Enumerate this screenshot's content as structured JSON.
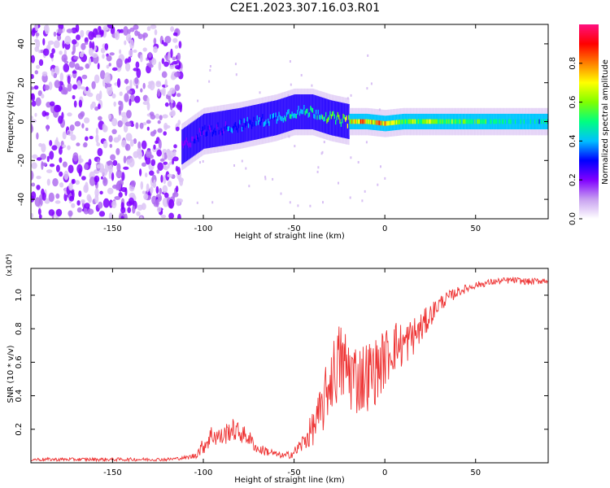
{
  "title": "C2E1.2023.307.16.03.R01",
  "colors": {
    "signal_line": "#ee3333",
    "spectrogram_scatter": "#8a2be2",
    "colorbar_stops": [
      "#ffffff",
      "#c8a0f0",
      "#8000ff",
      "#0000ff",
      "#00c0ff",
      "#00ff80",
      "#80ff00",
      "#ffff00",
      "#ff8000",
      "#ff0000",
      "#ff1080"
    ]
  },
  "chart_data": [
    {
      "type": "heatmap",
      "xlabel": "Height of straight line (km)",
      "ylabel": "Frequency (Hz)",
      "xlim": [
        -195,
        90
      ],
      "ylim": [
        -50,
        50
      ],
      "xticks": [
        -150,
        -100,
        -50,
        0,
        50
      ],
      "yticks": [
        -40,
        -20,
        0,
        20,
        40
      ],
      "colorbar": {
        "label": "Normalized spectral amplitude",
        "range": [
          0,
          1
        ],
        "ticks": [
          "0.0",
          "0.2",
          "0.4",
          "0.6",
          "0.8"
        ]
      },
      "noise_region_x": [
        -195,
        -112
      ],
      "ridge": {
        "x": [
          -112,
          -100,
          -80,
          -60,
          -50,
          -40,
          -30,
          -20,
          -10,
          0,
          10,
          20,
          40,
          60,
          90
        ],
        "y": [
          -13,
          -5,
          -2,
          2,
          5,
          5,
          2,
          0,
          0,
          -1,
          0,
          0,
          0,
          0,
          0
        ],
        "amplitude": [
          0.3,
          0.35,
          0.45,
          0.5,
          0.55,
          0.6,
          0.65,
          0.85,
          0.95,
          0.9,
          0.7,
          0.75,
          0.7,
          0.6,
          0.55
        ]
      }
    },
    {
      "type": "line",
      "xlabel": "Height of straight line (km)",
      "ylabel": "SNR (10 * v/v)",
      "y_multiplier": "(x10⁴)",
      "xlim": [
        -195,
        90
      ],
      "ylim": [
        0,
        1.16
      ],
      "xticks": [
        -150,
        -100,
        -50,
        0,
        50
      ],
      "yticks": [
        "0.2",
        "0.4",
        "0.6",
        "0.8",
        "1.0"
      ],
      "series": [
        {
          "x": [
            -195,
            -160,
            -120,
            -110,
            -105,
            -100,
            -95,
            -90,
            -85,
            -80,
            -75,
            -70,
            -65,
            -60,
            -55,
            -50,
            -45,
            -40,
            -35,
            -30,
            -25,
            -20,
            -15,
            -10,
            -5,
            0,
            5,
            10,
            15,
            20,
            25,
            30,
            40,
            50,
            60,
            70,
            80,
            90
          ],
          "y": [
            0.02,
            0.02,
            0.02,
            0.03,
            0.04,
            0.1,
            0.17,
            0.15,
            0.2,
            0.18,
            0.15,
            0.08,
            0.07,
            0.05,
            0.04,
            0.06,
            0.12,
            0.2,
            0.3,
            0.5,
            0.6,
            0.55,
            0.5,
            0.52,
            0.55,
            0.62,
            0.7,
            0.7,
            0.75,
            0.8,
            0.88,
            0.95,
            1.02,
            1.06,
            1.08,
            1.09,
            1.08,
            1.09
          ],
          "noise": [
            0.01,
            0.01,
            0.01,
            0.01,
            0.02,
            0.05,
            0.07,
            0.06,
            0.07,
            0.06,
            0.05,
            0.03,
            0.03,
            0.02,
            0.02,
            0.03,
            0.06,
            0.1,
            0.16,
            0.2,
            0.25,
            0.25,
            0.22,
            0.22,
            0.2,
            0.18,
            0.16,
            0.14,
            0.12,
            0.1,
            0.07,
            0.05,
            0.03,
            0.02,
            0.02,
            0.02,
            0.02,
            0.02
          ]
        }
      ]
    }
  ]
}
